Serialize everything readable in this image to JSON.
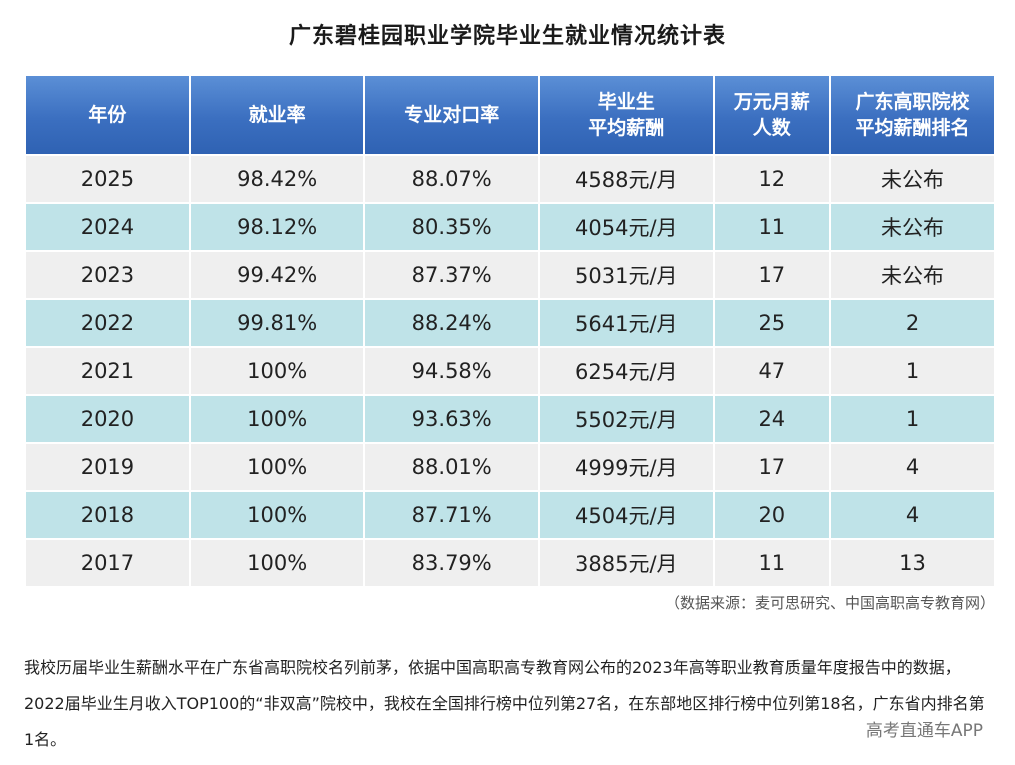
{
  "title": "广东碧桂园职业学院毕业生就业情况统计表",
  "headers": [
    "年份",
    "就业率",
    "专业对口率",
    "毕业生\n平均薪酬",
    "万元月薪\n人数",
    "广东高职院校\n平均薪酬排名"
  ],
  "rows": [
    [
      "2025",
      "98.42%",
      "88.07%",
      "4588元/月",
      "12",
      "未公布"
    ],
    [
      "2024",
      "98.12%",
      "80.35%",
      "4054元/月",
      "11",
      "未公布"
    ],
    [
      "2023",
      "99.42%",
      "87.37%",
      "5031元/月",
      "17",
      "未公布"
    ],
    [
      "2022",
      "99.81%",
      "88.24%",
      "5641元/月",
      "25",
      "2"
    ],
    [
      "2021",
      "100%",
      "94.58%",
      "6254元/月",
      "47",
      "1"
    ],
    [
      "2020",
      "100%",
      "93.63%",
      "5502元/月",
      "24",
      "1"
    ],
    [
      "2019",
      "100%",
      "88.01%",
      "4999元/月",
      "17",
      "4"
    ],
    [
      "2018",
      "100%",
      "87.71%",
      "4504元/月",
      "20",
      "4"
    ],
    [
      "2017",
      "100%",
      "83.79%",
      "3885元/月",
      "11",
      "13"
    ]
  ],
  "source": "（数据来源：麦可思研究、中国高职高专教育网）",
  "paragraph": "我校历届毕业生薪酬水平在广东省高职院校名列前茅，依据中国高职高专教育网公布的2023年高等职业教育质量年度报告中的数据，2022届毕业生月收入TOP100的“非双高”院校中，我校在全国排行榜中位列第27名，在东部地区排行榜中位列第18名，广东省内排名第1名。",
  "watermark": "高考直通车APP",
  "colors": {
    "header_bg": "#3b6fc0",
    "row_odd_bg": "#efefef",
    "row_even_bg": "#bfe3e8"
  }
}
